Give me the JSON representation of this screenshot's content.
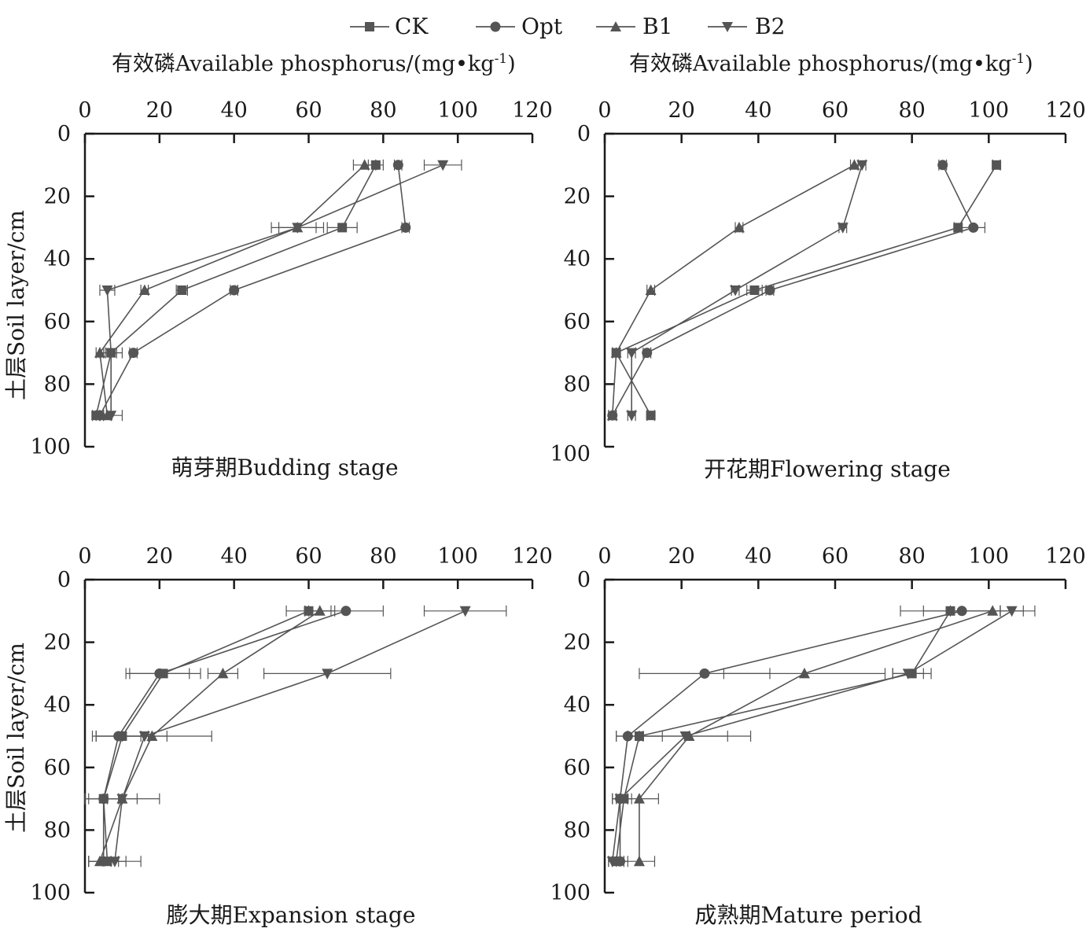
{
  "legend": {
    "entries": [
      {
        "name": "CK",
        "marker": "square"
      },
      {
        "name": "Opt",
        "marker": "circle"
      },
      {
        "name": "B1",
        "marker": "triangle-up"
      },
      {
        "name": "B2",
        "marker": "triangle-down"
      }
    ]
  },
  "titles": {
    "left_top": "有效磷Available phosphorus/(mg•kg",
    "right_top": "有效磷Available phosphorus/(mg•kg",
    "superscript": "-1",
    "closing": ")"
  },
  "ylabel": "土层Soil layer/cm",
  "colors": {
    "line": "#555555",
    "axis": "#1a1a1a",
    "marker": "#555555"
  },
  "chart_data": [
    {
      "type": "line",
      "title": "萌芽期Budding stage",
      "xlabel": "有效磷Available phosphorus/(mg•kg-1)",
      "ylabel": "土层Soil layer/cm",
      "xlim": [
        0,
        120
      ],
      "ylim": [
        0,
        100
      ],
      "xticks": [
        0,
        20,
        40,
        60,
        80,
        100,
        120
      ],
      "yticks": [
        0,
        20,
        40,
        60,
        80,
        100
      ],
      "depths": [
        10,
        30,
        50,
        70,
        90
      ],
      "series": [
        {
          "name": "CK",
          "values": [
            78,
            69,
            26,
            7,
            3
          ],
          "errors": [
            2,
            4,
            1.5,
            1.5,
            1
          ]
        },
        {
          "name": "Opt",
          "values": [
            84,
            86,
            40,
            13,
            4
          ],
          "errors": [
            1,
            1,
            1,
            1,
            1
          ]
        },
        {
          "name": "B1",
          "values": [
            75,
            57,
            16,
            4,
            6
          ],
          "errors": [
            3,
            5,
            1,
            1,
            1
          ]
        },
        {
          "name": "B2",
          "values": [
            96,
            57,
            6,
            7,
            7
          ],
          "errors": [
            5,
            7,
            2,
            3,
            3
          ]
        }
      ]
    },
    {
      "type": "line",
      "title": "开花期Flowering stage",
      "xlabel": "有效磷Available phosphorus/(mg•kg-1)",
      "ylabel": "土层Soil layer/cm",
      "xlim": [
        0,
        120
      ],
      "ylim": [
        0,
        100
      ],
      "xticks": [
        0,
        20,
        40,
        60,
        80,
        100,
        120
      ],
      "yticks": [
        0,
        20,
        40,
        60,
        80,
        100
      ],
      "depths": [
        10,
        30,
        50,
        70,
        90
      ],
      "series": [
        {
          "name": "CK",
          "values": [
            102,
            92,
            39,
            3,
            12
          ],
          "errors": [
            1,
            1,
            2,
            1,
            1
          ]
        },
        {
          "name": "Opt",
          "values": [
            88,
            96,
            43,
            11,
            2
          ],
          "errors": [
            1,
            3,
            1,
            1,
            1
          ]
        },
        {
          "name": "B1",
          "values": [
            65,
            35,
            12,
            3,
            2
          ],
          "errors": [
            1,
            1,
            1,
            1,
            1
          ]
        },
        {
          "name": "B2",
          "values": [
            67,
            62,
            34,
            7,
            7
          ],
          "errors": [
            1,
            1,
            1,
            1,
            1
          ]
        }
      ]
    },
    {
      "type": "line",
      "title": "膨大期Expansion stage",
      "xlabel": "有效磷Available phosphorus/(mg•kg-1)",
      "ylabel": "土层Soil layer/cm",
      "xlim": [
        0,
        120
      ],
      "ylim": [
        0,
        100
      ],
      "xticks": [
        0,
        20,
        40,
        60,
        80,
        100,
        120
      ],
      "yticks": [
        0,
        20,
        40,
        60,
        80,
        100
      ],
      "depths": [
        10,
        30,
        50,
        70,
        90
      ],
      "series": [
        {
          "name": "CK",
          "values": [
            60,
            21,
            10,
            5,
            6
          ],
          "errors": [
            6,
            10,
            7,
            4,
            5
          ]
        },
        {
          "name": "Opt",
          "values": [
            70,
            20,
            9,
            5,
            5
          ],
          "errors": [
            10,
            8,
            6,
            5,
            4
          ]
        },
        {
          "name": "B1",
          "values": [
            63,
            37,
            18,
            10,
            4
          ],
          "errors": [
            4,
            4,
            16,
            10,
            3
          ]
        },
        {
          "name": "B2",
          "values": [
            102,
            65,
            16,
            10,
            8
          ],
          "errors": [
            11,
            17,
            6,
            4,
            7
          ]
        }
      ]
    },
    {
      "type": "line",
      "title": "成熟期Mature period",
      "xlabel": "有效磷Available phosphorus/(mg•kg-1)",
      "ylabel": "土层Soil layer/cm",
      "xlim": [
        0,
        120
      ],
      "ylim": [
        0,
        100
      ],
      "xticks": [
        0,
        20,
        40,
        60,
        80,
        100,
        120
      ],
      "yticks": [
        0,
        20,
        40,
        60,
        80,
        100
      ],
      "depths": [
        10,
        30,
        50,
        70,
        90
      ],
      "series": [
        {
          "name": "CK",
          "values": [
            90,
            80,
            9,
            5,
            3
          ],
          "errors": [
            13,
            5,
            6,
            2,
            2
          ]
        },
        {
          "name": "Opt",
          "values": [
            93,
            26,
            6,
            4,
            4
          ],
          "errors": [
            10,
            17,
            3,
            2,
            2
          ]
        },
        {
          "name": "B1",
          "values": [
            101,
            52,
            22,
            9,
            9
          ],
          "errors": [
            11,
            21,
            16,
            5,
            4
          ]
        },
        {
          "name": "B2",
          "values": [
            106,
            79,
            21,
            4,
            2
          ],
          "errors": [
            3,
            4,
            11,
            2,
            1
          ]
        }
      ]
    }
  ]
}
